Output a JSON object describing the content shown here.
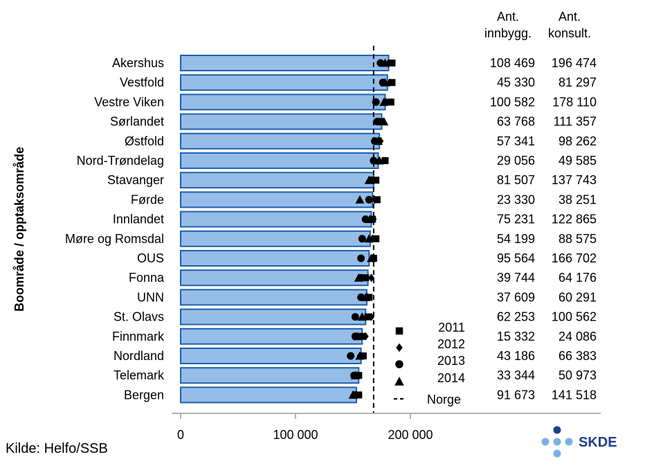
{
  "chart_data": {
    "type": "bar",
    "orientation": "horizontal",
    "ylabel": "Boområde / opptaksområde",
    "source": "Kilde: Helfo/SSB",
    "logo_text": "SKDE",
    "categories": [
      "Akershus",
      "Vestfold",
      "Vestre Viken",
      "Sørlandet",
      "Østfold",
      "Nord-Trøndelag",
      "Stavanger",
      "Førde",
      "Innlandet",
      "Møre og Romsdal",
      "OUS",
      "Fonna",
      "UNN",
      "St. Olavs",
      "Finnmark",
      "Nordland",
      "Telemark",
      "Bergen"
    ],
    "values": [
      181000,
      180000,
      178000,
      175000,
      173000,
      172000,
      168000,
      167000,
      166000,
      165000,
      164000,
      163000,
      162000,
      161000,
      158000,
      157000,
      155000,
      153000
    ],
    "markers": [
      {
        "name": "2011",
        "symbol": "square",
        "values": [
          184000,
          184000,
          183000,
          174000,
          172000,
          178000,
          170000,
          171000,
          167000,
          170000,
          168000,
          161000,
          164000,
          163000,
          158000,
          159000,
          155000,
          155000
        ]
      },
      {
        "name": "2012",
        "symbol": "diamond",
        "values": [
          181000,
          182000,
          179000,
          173000,
          174000,
          173000,
          168000,
          169000,
          168000,
          167000,
          167000,
          166000,
          163000,
          166000,
          161000,
          156000,
          153000,
          153000
        ]
      },
      {
        "name": "2013",
        "symbol": "circle",
        "values": [
          174000,
          176000,
          170000,
          171000,
          169000,
          168000,
          166000,
          164000,
          161000,
          158000,
          157000,
          157000,
          157000,
          152000,
          152000,
          148000,
          151000,
          152000
        ]
      },
      {
        "name": "2014",
        "symbol": "triangle",
        "values": [
          178000,
          178000,
          177000,
          177000,
          172000,
          173000,
          164000,
          156000,
          165000,
          164000,
          166000,
          155000,
          161000,
          158000,
          154000,
          156000,
          152000,
          150000
        ]
      }
    ],
    "reference_line": {
      "name": "Norge",
      "value": 168000
    },
    "xlim": [
      0,
      230000
    ],
    "xticks": [
      0,
      100000,
      200000
    ],
    "xtick_labels": [
      "0",
      "100 000",
      "200 000"
    ],
    "table": {
      "headers": [
        [
          "Ant.",
          "innbygg."
        ],
        [
          "Ant.",
          "konsult."
        ]
      ],
      "innbygg": [
        "108 469",
        "45 330",
        "100 582",
        "63 768",
        "57 341",
        "29 056",
        "81 507",
        "23 330",
        "75 231",
        "54 199",
        "95 564",
        "39 744",
        "37 609",
        "62 253",
        "15 332",
        "43 186",
        "33 344",
        "91 673"
      ],
      "konsult": [
        "196 474",
        "81 297",
        "178 110",
        "111 357",
        "98 262",
        "49 585",
        "137 743",
        "38 251",
        "122 865",
        "88 575",
        "166 702",
        "64 176",
        "60 291",
        "100 562",
        "24 086",
        "66 383",
        "50 973",
        "141 518"
      ]
    },
    "legend_position": "inside-bottom-right",
    "grid": false,
    "colors": {
      "bar_fill": "#95bde8",
      "bar_stroke": "#1f5fad",
      "marker": "#000000",
      "axis": "#999999",
      "logo_dot": "#7ab0e6",
      "logo_dot_dark": "#1c3f8f",
      "logo_text": "#1c3f8f"
    }
  }
}
